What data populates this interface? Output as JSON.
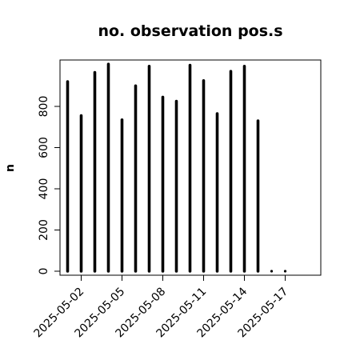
{
  "chart_data": {
    "type": "bar",
    "title": "no. observation pos.s",
    "xlabel": "",
    "ylabel": "n",
    "ylim": [
      0,
      1000
    ],
    "yticks": [
      0,
      200,
      400,
      600,
      800
    ],
    "categories": [
      "2025-05-01",
      "2025-05-02",
      "2025-05-03",
      "2025-05-04",
      "2025-05-05",
      "2025-05-06",
      "2025-05-07",
      "2025-05-08",
      "2025-05-09",
      "2025-05-10",
      "2025-05-11",
      "2025-05-12",
      "2025-05-13",
      "2025-05-14",
      "2025-05-15",
      "2025-05-16",
      "2025-05-17"
    ],
    "values": [
      920,
      755,
      965,
      1005,
      735,
      900,
      995,
      845,
      825,
      1000,
      925,
      765,
      970,
      995,
      730,
      0,
      0
    ],
    "xtick_labels": [
      {
        "date": "2025-05-02",
        "label": "2025-05-02",
        "color": "#000000"
      },
      {
        "date": "2025-05-05",
        "label": "2025-05-05",
        "color": "#000000"
      },
      {
        "date": "2025-05-08",
        "label": "2025-05-08",
        "color": "#228B22"
      },
      {
        "date": "2025-05-11",
        "label": "2025-05-11",
        "color": "#000000"
      },
      {
        "date": "2025-05-14",
        "label": "2025-05-14",
        "color": "#000000"
      },
      {
        "date": "2025-05-17",
        "label": "2025-05-17",
        "color": "#000000"
      }
    ],
    "grid": false,
    "bar_color": "#000000"
  }
}
